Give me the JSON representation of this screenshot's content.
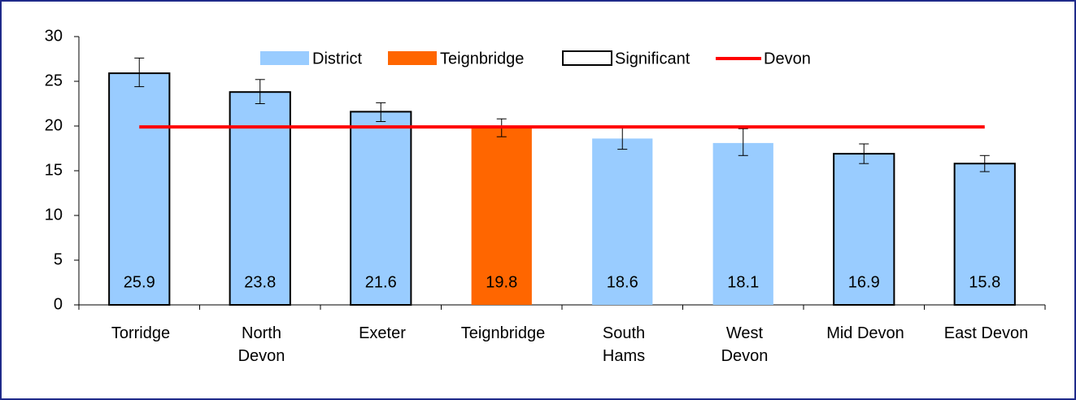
{
  "chart_data": {
    "type": "bar",
    "categories": [
      "Torridge",
      "North\nDevon",
      "Exeter",
      "Teignbridge",
      "South\nHams",
      "West\nDevon",
      "Mid Devon",
      "East Devon"
    ],
    "values": [
      25.9,
      23.8,
      21.6,
      19.8,
      18.6,
      18.1,
      16.9,
      15.8
    ],
    "ci_lower": [
      24.4,
      22.5,
      20.5,
      18.8,
      17.4,
      16.7,
      15.8,
      14.9
    ],
    "ci_upper": [
      27.6,
      25.2,
      22.6,
      20.8,
      19.9,
      19.7,
      18.0,
      16.7
    ],
    "bar_colors": [
      "#99ccff",
      "#99ccff",
      "#99ccff",
      "#ff6600",
      "#99ccff",
      "#99ccff",
      "#99ccff",
      "#99ccff"
    ],
    "significant": [
      true,
      true,
      true,
      false,
      false,
      false,
      true,
      true
    ],
    "legend": [
      {
        "name": "District",
        "color": "#99ccff"
      },
      {
        "name": "Teignbridge",
        "color": "#ff6600"
      },
      {
        "name": "Significant",
        "color": "#ffffff"
      }
    ],
    "reference_line": {
      "name": "Devon",
      "value": 19.9,
      "color": "#ff0000"
    },
    "ylim": [
      0,
      30
    ],
    "yticks": [
      0,
      5,
      10,
      15,
      20,
      25,
      30
    ]
  }
}
